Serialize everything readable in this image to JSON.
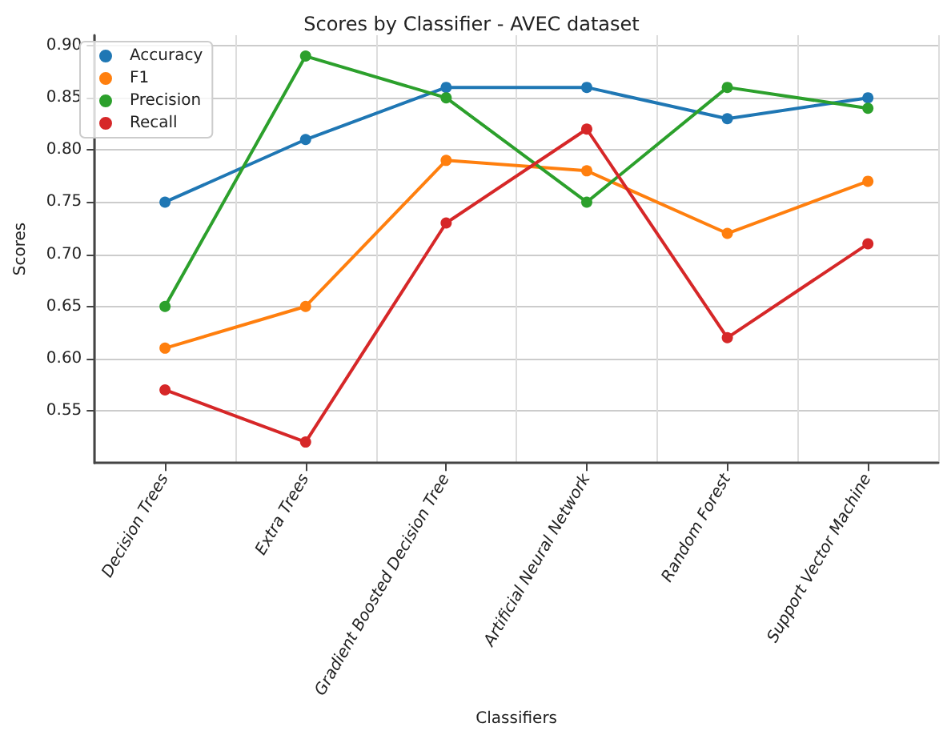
{
  "chart_data": {
    "type": "line",
    "title": "Scores by Classifier - AVEC dataset",
    "xlabel": "Classifiers",
    "ylabel": "Scores",
    "categories": [
      "Decision Trees",
      "Extra Trees",
      "Gradient Boosted Decision Tree",
      "Artificial Neural Network",
      "Random Forest",
      "Support Vector Machine"
    ],
    "series": [
      {
        "name": "Accuracy",
        "color": "#1f77b4",
        "values": [
          0.75,
          0.81,
          0.86,
          0.86,
          0.83,
          0.85
        ]
      },
      {
        "name": "F1",
        "color": "#ff7f0e",
        "values": [
          0.61,
          0.65,
          0.79,
          0.78,
          0.72,
          0.77
        ]
      },
      {
        "name": "Precision",
        "color": "#2ca02c",
        "values": [
          0.65,
          0.89,
          0.85,
          0.75,
          0.86,
          0.84
        ]
      },
      {
        "name": "Recall",
        "color": "#d62728",
        "values": [
          0.57,
          0.52,
          0.73,
          0.82,
          0.62,
          0.71
        ]
      }
    ],
    "ylim": [
      0.5,
      0.91
    ],
    "yticks": [
      0.55,
      {
        "value": 0.6,
        "label": "0.60"
      },
      0.65,
      {
        "value": 0.7,
        "label": "0.70"
      },
      0.75,
      {
        "value": 0.8,
        "label": "0.80"
      },
      0.85,
      {
        "value": 0.9,
        "label": "0.90"
      }
    ],
    "grid": true,
    "legend": "top left",
    "marker": "circle",
    "line_style": "solid"
  }
}
